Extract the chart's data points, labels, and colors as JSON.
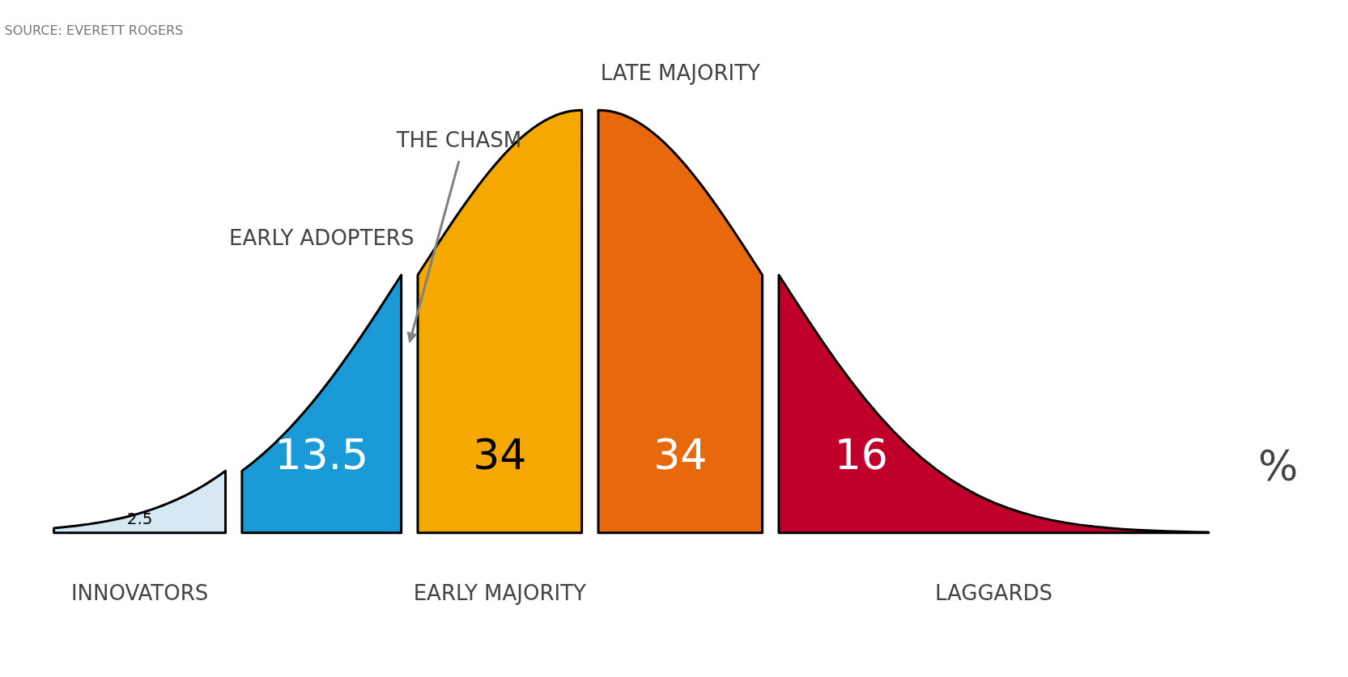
{
  "chart_data": {
    "type": "other",
    "categories": [
      "INNOVATORS",
      "EARLY ADOPTERS",
      "EARLY MAJORITY",
      "LATE MAJORITY",
      "LAGGARDS"
    ],
    "values": [
      2.5,
      13.5,
      34,
      34,
      16
    ],
    "colors": [
      "#d6e9f2",
      "#1a9ad6",
      "#f5a800",
      "#e8690c",
      "#c0002a"
    ],
    "data_labels": true,
    "annotations": [
      "SOURCE: EVERETT ROGERS",
      "THE CHASM",
      "%"
    ]
  }
}
